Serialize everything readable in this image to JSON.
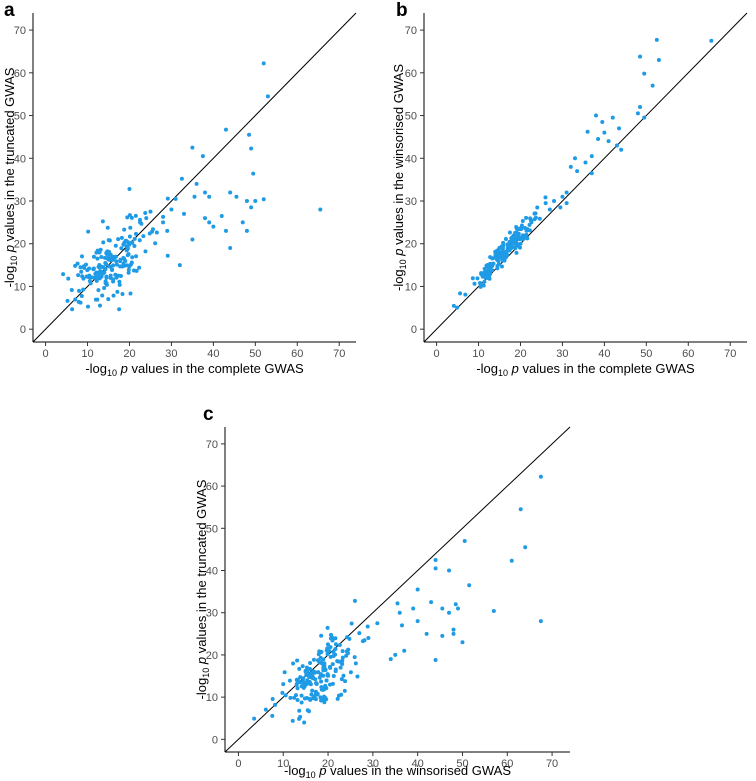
{
  "chart_data": [
    {
      "panel": "a",
      "type": "scatter",
      "xlabel": {
        "pre": "-log",
        "sub": "10",
        "p": "p",
        "post": " values in the complete GWAS"
      },
      "ylabel": {
        "pre": "-log",
        "sub": "10",
        "p": "p",
        "post": " values in the truncated GWAS"
      },
      "xlim": [
        -3,
        74
      ],
      "ylim": [
        -3,
        74
      ],
      "xticks": [
        0,
        10,
        20,
        30,
        40,
        50,
        60,
        70
      ],
      "yticks": [
        0,
        10,
        20,
        30,
        40,
        50,
        60,
        70
      ],
      "reference_line": "y = x",
      "seed": 11,
      "points": [
        [
          52,
          62.2
        ],
        [
          53,
          54.5
        ],
        [
          43,
          46.7
        ],
        [
          48.5,
          45.5
        ],
        [
          49,
          42.3
        ],
        [
          35,
          42.5
        ],
        [
          37.5,
          40.5
        ],
        [
          32.5,
          35.2
        ],
        [
          36,
          34
        ],
        [
          49.5,
          36.4
        ],
        [
          52,
          30.4
        ],
        [
          45.5,
          31
        ],
        [
          44,
          32
        ],
        [
          48,
          30
        ],
        [
          20,
          32.8
        ],
        [
          38,
          32
        ],
        [
          39,
          31
        ],
        [
          31,
          30.5
        ],
        [
          35.5,
          31
        ],
        [
          30,
          28
        ],
        [
          49,
          28.5
        ],
        [
          65.5,
          28
        ],
        [
          33,
          27
        ],
        [
          25,
          27.5
        ],
        [
          42,
          26.5
        ],
        [
          47,
          25
        ],
        [
          39,
          25
        ],
        [
          40,
          24
        ],
        [
          24,
          26
        ],
        [
          28,
          25
        ],
        [
          29,
          23
        ],
        [
          48,
          23
        ],
        [
          35,
          21
        ],
        [
          43,
          23
        ],
        [
          44,
          19
        ],
        [
          32,
          15
        ],
        [
          50,
          30
        ],
        [
          38,
          26
        ]
      ],
      "cluster": {
        "cx": 15,
        "cy": 16,
        "n": 190,
        "sx": 6.5,
        "sy": 4.5
      }
    },
    {
      "panel": "b",
      "type": "scatter",
      "xlabel": {
        "pre": "-log",
        "sub": "10",
        "p": "p",
        "post": " values in the complete GWAS"
      },
      "ylabel": {
        "pre": "-log",
        "sub": "10",
        "p": "p",
        "post": " values in the winsorised GWAS"
      },
      "xlim": [
        -3,
        74
      ],
      "ylim": [
        -3,
        74
      ],
      "xticks": [
        0,
        10,
        20,
        30,
        40,
        50,
        60,
        70
      ],
      "yticks": [
        0,
        10,
        20,
        30,
        40,
        50,
        60,
        70
      ],
      "reference_line": "y = x",
      "seed": 23,
      "points": [
        [
          65.5,
          67.5
        ],
        [
          52.5,
          67.7
        ],
        [
          48.5,
          63.8
        ],
        [
          53,
          63
        ],
        [
          49.5,
          59.8
        ],
        [
          51.5,
          57
        ],
        [
          48.5,
          52
        ],
        [
          48,
          50.5
        ],
        [
          49.5,
          49.5
        ],
        [
          38,
          50
        ],
        [
          42,
          49.5
        ],
        [
          39.5,
          48.5
        ],
        [
          43.5,
          47
        ],
        [
          36,
          46.2
        ],
        [
          40,
          46
        ],
        [
          38.5,
          44.5
        ],
        [
          41,
          44
        ],
        [
          43,
          43
        ],
        [
          44,
          42
        ],
        [
          37,
          40.5
        ],
        [
          33,
          40
        ],
        [
          35.5,
          39
        ],
        [
          32,
          38
        ],
        [
          33.5,
          37
        ],
        [
          37,
          36.5
        ],
        [
          31,
          32
        ],
        [
          30,
          31
        ],
        [
          31,
          29.5
        ],
        [
          28,
          30
        ],
        [
          29.5,
          28.5
        ],
        [
          26,
          29.5
        ],
        [
          27,
          28
        ]
      ],
      "cluster": {
        "cx": 16,
        "cy": 19,
        "n": 190,
        "sx": 5.5,
        "sy": 0
      }
    },
    {
      "panel": "c",
      "type": "scatter",
      "xlabel": {
        "pre": "-log",
        "sub": "10",
        "p": "p",
        "post": " values in the winsorised GWAS"
      },
      "ylabel": {
        "pre": "-log",
        "sub": "10",
        "p": "p",
        "post": " values in the truncated GWAS"
      },
      "xlim": [
        -3,
        74
      ],
      "ylim": [
        -3,
        74
      ],
      "xticks": [
        0,
        10,
        20,
        30,
        40,
        50,
        60,
        70
      ],
      "yticks": [
        0,
        10,
        20,
        30,
        40,
        50,
        60,
        70
      ],
      "reference_line": "y = x",
      "seed": 37,
      "points": [
        [
          67.5,
          62.2
        ],
        [
          63,
          54.5
        ],
        [
          50.5,
          47
        ],
        [
          64,
          45.5
        ],
        [
          61,
          42.3
        ],
        [
          44,
          42.5
        ],
        [
          44,
          40.5
        ],
        [
          47,
          40
        ],
        [
          40,
          35.5
        ],
        [
          51.5,
          36.5
        ],
        [
          35.5,
          32.2
        ],
        [
          43,
          32.5
        ],
        [
          45.5,
          31
        ],
        [
          48.5,
          32
        ],
        [
          49,
          31
        ],
        [
          47,
          30
        ],
        [
          57,
          30.4
        ],
        [
          36,
          30
        ],
        [
          26,
          32.8
        ],
        [
          39,
          31
        ],
        [
          40,
          28
        ],
        [
          67.5,
          28
        ],
        [
          36.5,
          27
        ],
        [
          31,
          27.5
        ],
        [
          48,
          26
        ],
        [
          42,
          25
        ],
        [
          48,
          25
        ],
        [
          45.5,
          24.5
        ],
        [
          50,
          23
        ],
        [
          44,
          18.8
        ],
        [
          37,
          21
        ],
        [
          35,
          20
        ],
        [
          34,
          19
        ],
        [
          29,
          24
        ]
      ],
      "cluster": {
        "cx": 18,
        "cy": 15,
        "n": 190,
        "sx": 5.5,
        "sy": 4
      }
    }
  ]
}
